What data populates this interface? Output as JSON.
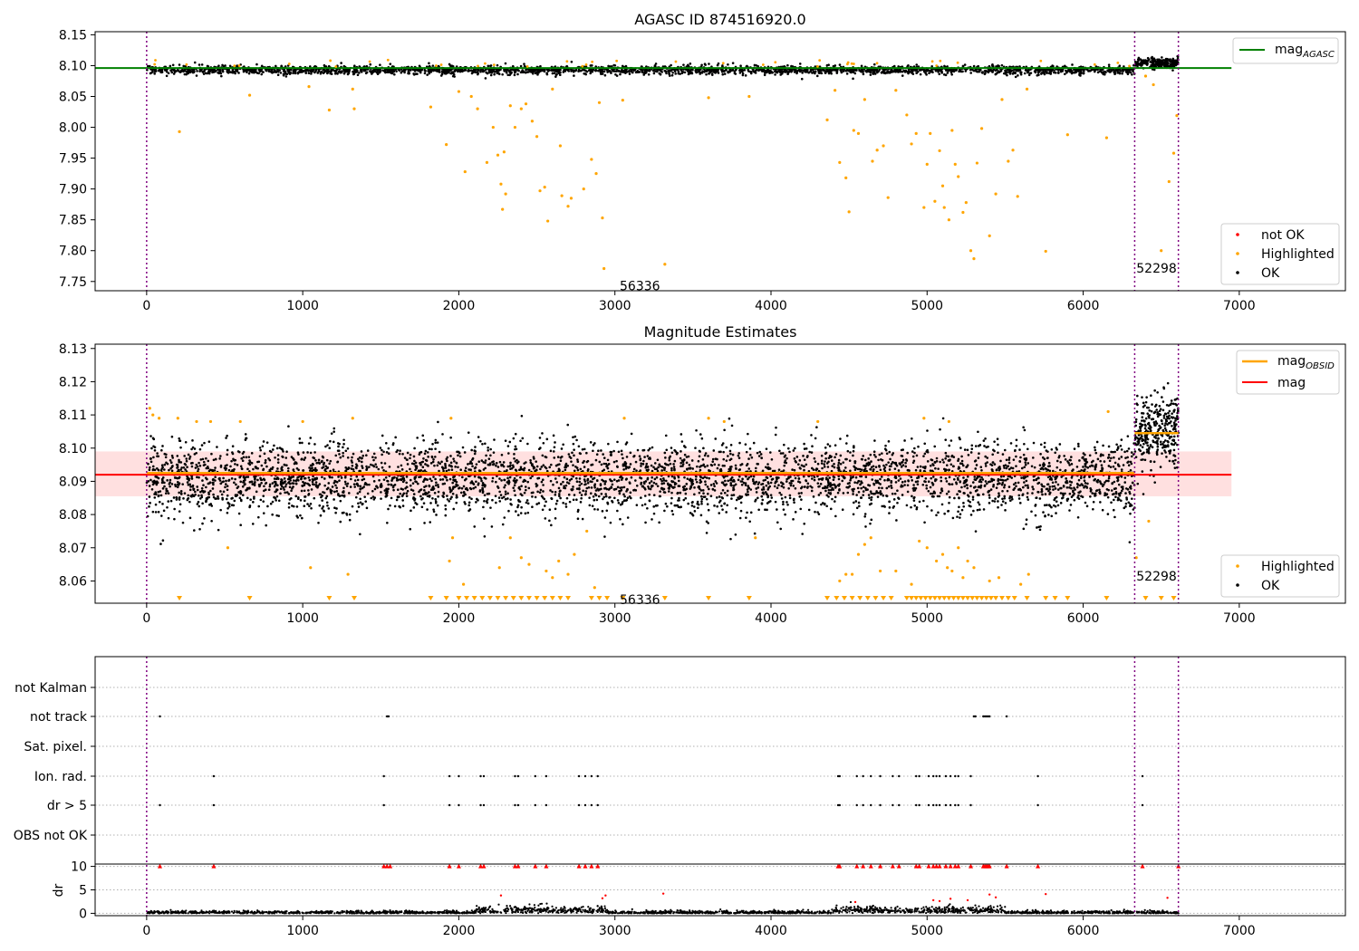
{
  "chart_data": [
    {
      "type": "scatter",
      "title": "AGASC ID 874516920.0",
      "xlim": [
        -330,
        7680
      ],
      "ylim": [
        7.735,
        8.155
      ],
      "xticks": [
        0,
        1000,
        2000,
        3000,
        4000,
        5000,
        6000,
        7000
      ],
      "yticks": [
        7.75,
        7.8,
        7.85,
        7.9,
        7.95,
        8.0,
        8.05,
        8.1,
        8.15
      ],
      "ytick_labels": [
        "7.75",
        "7.80",
        "7.85",
        "7.90",
        "7.95",
        "8.00",
        "8.05",
        "8.10",
        "8.15"
      ],
      "vlines": [
        0,
        6330,
        6610
      ],
      "annotations": [
        {
          "text": "56336",
          "x": 3160,
          "y": 7.743
        },
        {
          "text": "52298",
          "x": 6470,
          "y": 7.772
        }
      ],
      "agasc_mag": {
        "name": "mag",
        "sub": "AGASC",
        "value": 8.096,
        "x": [
          -330,
          6950
        ]
      },
      "series": [
        {
          "name": "not OK",
          "color": "#ff0000",
          "values": []
        },
        {
          "name": "Highlighted",
          "color": "#ffa500",
          "values": [
            [
              210,
              7.993
            ],
            [
              660,
              8.052
            ],
            [
              1040,
              8.066
            ],
            [
              1170,
              8.028
            ],
            [
              1320,
              8.062
            ],
            [
              1330,
              8.03
            ],
            [
              1820,
              8.033
            ],
            [
              1920,
              7.972
            ],
            [
              2000,
              8.058
            ],
            [
              2040,
              7.928
            ],
            [
              2080,
              8.05
            ],
            [
              2120,
              8.03
            ],
            [
              2180,
              7.943
            ],
            [
              2220,
              8.0
            ],
            [
              2250,
              7.955
            ],
            [
              2270,
              7.908
            ],
            [
              2290,
              7.96
            ],
            [
              2280,
              7.867
            ],
            [
              2300,
              7.892
            ],
            [
              2330,
              8.035
            ],
            [
              2360,
              8.0
            ],
            [
              2400,
              8.03
            ],
            [
              2430,
              8.038
            ],
            [
              2470,
              8.01
            ],
            [
              2500,
              7.985
            ],
            [
              2520,
              7.897
            ],
            [
              2550,
              7.903
            ],
            [
              2570,
              7.848
            ],
            [
              2600,
              8.062
            ],
            [
              2650,
              7.97
            ],
            [
              2660,
              7.889
            ],
            [
              2700,
              7.872
            ],
            [
              2720,
              7.885
            ],
            [
              2800,
              7.9
            ],
            [
              2850,
              7.948
            ],
            [
              2880,
              7.925
            ],
            [
              2900,
              8.04
            ],
            [
              2920,
              7.853
            ],
            [
              2930,
              7.771
            ],
            [
              3050,
              8.044
            ],
            [
              3320,
              7.778
            ],
            [
              3600,
              8.048
            ],
            [
              3860,
              8.05
            ],
            [
              4360,
              8.012
            ],
            [
              4410,
              8.06
            ],
            [
              4440,
              7.943
            ],
            [
              4480,
              7.918
            ],
            [
              4500,
              7.863
            ],
            [
              4530,
              7.995
            ],
            [
              4560,
              7.99
            ],
            [
              4600,
              8.045
            ],
            [
              4650,
              7.945
            ],
            [
              4680,
              7.963
            ],
            [
              4720,
              7.97
            ],
            [
              4750,
              7.886
            ],
            [
              4800,
              8.06
            ],
            [
              4870,
              8.02
            ],
            [
              4900,
              7.973
            ],
            [
              4930,
              7.99
            ],
            [
              4980,
              7.87
            ],
            [
              5000,
              7.94
            ],
            [
              5020,
              7.99
            ],
            [
              5050,
              7.88
            ],
            [
              5080,
              7.962
            ],
            [
              5100,
              7.905
            ],
            [
              5110,
              7.87
            ],
            [
              5140,
              7.85
            ],
            [
              5160,
              7.995
            ],
            [
              5180,
              7.94
            ],
            [
              5200,
              7.92
            ],
            [
              5230,
              7.862
            ],
            [
              5250,
              7.878
            ],
            [
              5280,
              7.8
            ],
            [
              5300,
              7.787
            ],
            [
              5320,
              7.942
            ],
            [
              5350,
              7.998
            ],
            [
              5400,
              7.824
            ],
            [
              5440,
              7.892
            ],
            [
              5480,
              8.045
            ],
            [
              5520,
              7.945
            ],
            [
              5550,
              7.963
            ],
            [
              5580,
              7.888
            ],
            [
              5640,
              8.062
            ],
            [
              5760,
              7.799
            ],
            [
              5900,
              7.988
            ],
            [
              6150,
              7.983
            ],
            [
              6400,
              8.083
            ],
            [
              6450,
              8.069
            ],
            [
              6500,
              7.8
            ],
            [
              6550,
              7.912
            ],
            [
              6580,
              7.958
            ],
            [
              6600,
              8.019
            ]
          ]
        },
        {
          "name": "OK",
          "color": "#000000",
          "center": 8.093,
          "spread": 0.005
        }
      ]
    },
    {
      "type": "scatter",
      "title": "Magnitude Estimates",
      "xlim": [
        -330,
        7680
      ],
      "ylim": [
        8.0533,
        8.1313
      ],
      "xticks": [
        0,
        1000,
        2000,
        3000,
        4000,
        5000,
        6000,
        7000
      ],
      "yticks": [
        8.06,
        8.07,
        8.08,
        8.09,
        8.1,
        8.11,
        8.12,
        8.13
      ],
      "ytick_labels": [
        "8.06",
        "8.07",
        "8.08",
        "8.09",
        "8.10",
        "8.11",
        "8.12",
        "8.13"
      ],
      "vlines": [
        0,
        6330,
        6610
      ],
      "annotations": [
        {
          "text": "56336",
          "x": 3160,
          "y": 8.0544
        },
        {
          "text": "52298",
          "x": 6470,
          "y": 8.0615
        }
      ],
      "mag": {
        "name": "mag",
        "value": 8.092,
        "band": [
          8.0855,
          8.099
        ],
        "x": [
          -330,
          6950
        ],
        "color": "#ff0000"
      },
      "mag_obsid": {
        "name": "mag",
        "sub": "OBSID",
        "segments": [
          [
            0,
            6330,
            8.0925
          ],
          [
            6330,
            6610,
            8.1045
          ]
        ],
        "color": "#ffa500"
      },
      "series": [
        {
          "name": "Highlighted",
          "color": "#ffa500",
          "values": [
            [
              20,
              8.112
            ],
            [
              40,
              8.11
            ],
            [
              80,
              8.109
            ],
            [
              200,
              8.109
            ],
            [
              320,
              8.108
            ],
            [
              410,
              8.108
            ],
            [
              600,
              8.108
            ],
            [
              1000,
              8.108
            ],
            [
              1320,
              8.109
            ],
            [
              1950,
              8.109
            ],
            [
              3060,
              8.109
            ],
            [
              3600,
              8.109
            ],
            [
              3700,
              8.108
            ],
            [
              4300,
              8.108
            ],
            [
              4980,
              8.109
            ],
            [
              5140,
              8.108
            ],
            [
              6160,
              8.111
            ],
            [
              520,
              8.07
            ],
            [
              1050,
              8.064
            ],
            [
              1290,
              8.062
            ],
            [
              1940,
              8.066
            ],
            [
              1960,
              8.073
            ],
            [
              2030,
              8.059
            ],
            [
              2260,
              8.064
            ],
            [
              2330,
              8.073
            ],
            [
              2400,
              8.067
            ],
            [
              2450,
              8.065
            ],
            [
              2560,
              8.063
            ],
            [
              2600,
              8.061
            ],
            [
              2640,
              8.066
            ],
            [
              2700,
              8.062
            ],
            [
              2740,
              8.068
            ],
            [
              2820,
              8.075
            ],
            [
              2870,
              8.058
            ],
            [
              3900,
              8.073
            ],
            [
              4440,
              8.06
            ],
            [
              4480,
              8.062
            ],
            [
              4520,
              8.062
            ],
            [
              4560,
              8.068
            ],
            [
              4600,
              8.071
            ],
            [
              4640,
              8.073
            ],
            [
              4700,
              8.063
            ],
            [
              4800,
              8.063
            ],
            [
              4900,
              8.059
            ],
            [
              4950,
              8.072
            ],
            [
              5000,
              8.07
            ],
            [
              5060,
              8.066
            ],
            [
              5100,
              8.068
            ],
            [
              5130,
              8.064
            ],
            [
              5160,
              8.063
            ],
            [
              5200,
              8.07
            ],
            [
              5230,
              8.061
            ],
            [
              5260,
              8.066
            ],
            [
              5300,
              8.064
            ],
            [
              5400,
              8.06
            ],
            [
              5460,
              8.061
            ],
            [
              5600,
              8.059
            ],
            [
              5650,
              8.062
            ],
            [
              6340,
              8.067
            ],
            [
              6420,
              8.078
            ]
          ]
        },
        {
          "name": "OK",
          "color": "#000000",
          "center": 8.091,
          "spread": 0.006
        }
      ],
      "below_limit_markers": [
        210,
        660,
        1170,
        1330,
        1820,
        1920,
        2000,
        2050,
        2100,
        2150,
        2200,
        2250,
        2300,
        2350,
        2400,
        2450,
        2500,
        2550,
        2600,
        2650,
        2700,
        2850,
        2900,
        2950,
        3050,
        3320,
        3600,
        3860,
        4360,
        4420,
        4470,
        4520,
        4570,
        4620,
        4670,
        4720,
        4770,
        4870,
        4900,
        4930,
        4960,
        4990,
        5020,
        5050,
        5080,
        5110,
        5140,
        5170,
        5200,
        5230,
        5260,
        5290,
        5320,
        5350,
        5380,
        5410,
        5440,
        5480,
        5520,
        5560,
        5640,
        5760,
        5820,
        5900,
        6150,
        6400,
        6500,
        6580
      ]
    },
    {
      "type": "scatter",
      "title": "",
      "xlim": [
        -330,
        7680
      ],
      "xticks": [
        0,
        1000,
        2000,
        3000,
        4000,
        5000,
        6000,
        7000
      ],
      "vlines": [
        0,
        6330,
        6610
      ],
      "flag_rows": [
        "not Kalman",
        "not track",
        "Sat. pixel.",
        "Ion. rad.",
        "dr > 5",
        "OBS not OK"
      ],
      "flags": {
        "not Kalman": [],
        "not track": [
          85,
          1540,
          1550,
          5300,
          5310,
          5360,
          5370,
          5380,
          5390,
          5400,
          5510
        ],
        "Sat. pixel.": [],
        "Ion. rad.": [
          430,
          1520,
          1940,
          2000,
          2140,
          2160,
          2360,
          2380,
          2490,
          2560,
          2770,
          2810,
          2850,
          2890,
          4430,
          4440,
          4550,
          4590,
          4640,
          4700,
          4780,
          4820,
          4930,
          4950,
          5010,
          5040,
          5060,
          5080,
          5120,
          5150,
          5180,
          5200,
          5280,
          5710,
          6380
        ],
        "dr > 5": [
          85,
          430,
          1520,
          1940,
          2000,
          2140,
          2160,
          2360,
          2380,
          2490,
          2560,
          2770,
          2810,
          2850,
          2890,
          4430,
          4440,
          4550,
          4590,
          4640,
          4700,
          4780,
          4820,
          4930,
          4950,
          5010,
          5040,
          5060,
          5080,
          5120,
          5150,
          5180,
          5200,
          5280,
          5710,
          6380
        ],
        "OBS not OK": []
      },
      "dr": {
        "ylabel": "dr",
        "ylim": [
          -0.5,
          10.5
        ],
        "yticks": [
          0,
          5,
          10
        ],
        "clipped_red_at_10": [
          85,
          430,
          1520,
          1540,
          1560,
          1940,
          2000,
          2140,
          2160,
          2360,
          2380,
          2490,
          2560,
          2770,
          2810,
          2850,
          2890,
          4430,
          4440,
          4550,
          4590,
          4640,
          4700,
          4780,
          4820,
          4930,
          4950,
          5010,
          5040,
          5060,
          5080,
          5120,
          5150,
          5180,
          5200,
          5280,
          5360,
          5370,
          5380,
          5390,
          5400,
          5510,
          5710,
          6380,
          6610
        ],
        "red_points": [
          [
            2270,
            3.8
          ],
          [
            2920,
            3.2
          ],
          [
            2940,
            3.8
          ],
          [
            3310,
            4.2
          ],
          [
            4540,
            2.4
          ],
          [
            5040,
            2.8
          ],
          [
            5080,
            2.6
          ],
          [
            5150,
            3.1
          ],
          [
            5260,
            2.8
          ],
          [
            5400,
            4.0
          ],
          [
            5440,
            3.4
          ],
          [
            5760,
            4.1
          ],
          [
            6540,
            3.3
          ]
        ]
      }
    }
  ],
  "legend_top": [
    {
      "label": "not OK"
    },
    {
      "label": "Highlighted"
    },
    {
      "label": "OK"
    }
  ],
  "legend_mid": [
    {
      "label": "Highlighted"
    },
    {
      "label": "OK"
    }
  ]
}
